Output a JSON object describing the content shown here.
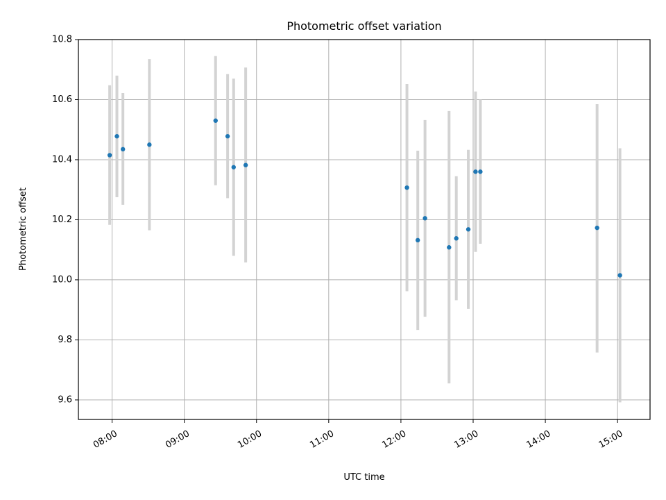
{
  "chart_data": {
    "type": "scatter",
    "title": "Photometric offset variation",
    "xlabel": "UTC time",
    "ylabel": "Photometric offset",
    "grid": true,
    "xlim": [
      "07:32",
      "15:27"
    ],
    "ylim": [
      9.535,
      10.8
    ],
    "xticks": [
      "08:00",
      "09:00",
      "10:00",
      "11:00",
      "12:00",
      "13:00",
      "14:00",
      "15:00"
    ],
    "yticks": [
      "9.6",
      "9.8",
      "10.0",
      "10.2",
      "10.4",
      "10.6",
      "10.8"
    ],
    "marker_color": "#1f77b4",
    "errorbar_color": "#d3d3d3",
    "points": [
      {
        "x": "07:58",
        "y": 10.415,
        "ymin": 10.183,
        "ymax": 10.648
      },
      {
        "x": "08:04",
        "y": 10.478,
        "ymin": 10.275,
        "ymax": 10.68
      },
      {
        "x": "08:09",
        "y": 10.435,
        "ymin": 10.25,
        "ymax": 10.622
      },
      {
        "x": "08:31",
        "y": 10.45,
        "ymin": 10.165,
        "ymax": 10.735
      },
      {
        "x": "09:26",
        "y": 10.53,
        "ymin": 10.315,
        "ymax": 10.745
      },
      {
        "x": "09:36",
        "y": 10.478,
        "ymin": 10.272,
        "ymax": 10.685
      },
      {
        "x": "09:41",
        "y": 10.375,
        "ymin": 10.08,
        "ymax": 10.67
      },
      {
        "x": "09:51",
        "y": 10.382,
        "ymin": 10.058,
        "ymax": 10.707
      },
      {
        "x": "12:05",
        "y": 10.307,
        "ymin": 9.962,
        "ymax": 10.652
      },
      {
        "x": "12:14",
        "y": 10.132,
        "ymin": 9.833,
        "ymax": 10.43
      },
      {
        "x": "12:20",
        "y": 10.205,
        "ymin": 9.877,
        "ymax": 10.532
      },
      {
        "x": "12:40",
        "y": 10.108,
        "ymin": 9.655,
        "ymax": 10.562
      },
      {
        "x": "12:46",
        "y": 10.138,
        "ymin": 9.932,
        "ymax": 10.345
      },
      {
        "x": "12:56",
        "y": 10.168,
        "ymin": 9.903,
        "ymax": 10.433
      },
      {
        "x": "13:02",
        "y": 10.36,
        "ymin": 10.093,
        "ymax": 10.627
      },
      {
        "x": "13:06",
        "y": 10.36,
        "ymin": 10.12,
        "ymax": 10.6
      },
      {
        "x": "14:43",
        "y": 10.173,
        "ymin": 9.758,
        "ymax": 10.585
      },
      {
        "x": "15:02",
        "y": 10.015,
        "ymin": 9.592,
        "ymax": 10.438
      }
    ]
  }
}
